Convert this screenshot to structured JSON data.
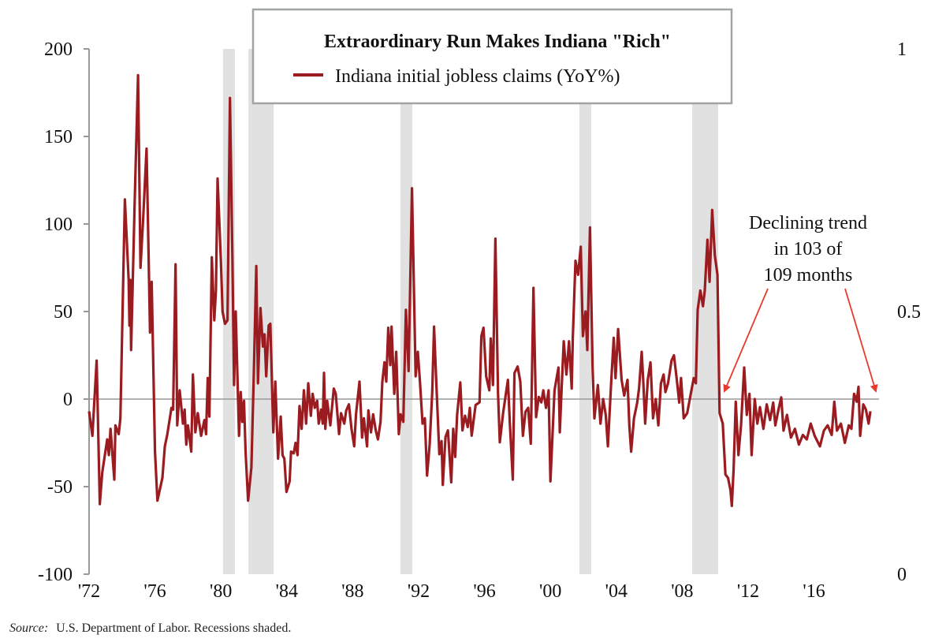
{
  "chart_data": {
    "type": "line",
    "title": "Extraordinary Run Makes Indiana \"Rich\"",
    "legend_position": "top-center",
    "series": [
      {
        "name": "Indiana initial jobless claims (YoY%)",
        "color": "#9b1c20",
        "x": [
          1972.0,
          1972.2,
          1972.46,
          1972.65,
          1972.8,
          1973.1,
          1973.2,
          1973.3,
          1973.53,
          1973.6,
          1973.8,
          1973.9,
          1974.17,
          1974.4,
          1974.45,
          1974.5,
          1974.55,
          1974.76,
          1974.97,
          1975.12,
          1975.28,
          1975.49,
          1975.6,
          1975.7,
          1975.8,
          1976.0,
          1976.15,
          1976.45,
          1976.6,
          1976.75,
          1977.0,
          1977.1,
          1977.25,
          1977.35,
          1977.5,
          1977.7,
          1977.8,
          1977.9,
          1978.0,
          1978.2,
          1978.3,
          1978.45,
          1978.6,
          1978.8,
          1979.0,
          1979.1,
          1979.2,
          1979.3,
          1979.45,
          1979.6,
          1979.7,
          1979.8,
          1980.0,
          1980.1,
          1980.25,
          1980.4,
          1980.55,
          1980.7,
          1980.8,
          1980.9,
          1981.1,
          1981.2,
          1981.3,
          1981.4,
          1981.5,
          1981.65,
          1981.85,
          1982.0,
          1982.15,
          1982.25,
          1982.4,
          1982.55,
          1982.65,
          1982.75,
          1982.9,
          1983.0,
          1983.18,
          1983.3,
          1983.47,
          1983.63,
          1983.74,
          1983.85,
          1983.98,
          1984.17,
          1984.26,
          1984.42,
          1984.53,
          1984.65,
          1984.77,
          1984.9,
          1985.04,
          1985.17,
          1985.3,
          1985.46,
          1985.57,
          1985.7,
          1985.84,
          1985.94,
          1986.08,
          1986.18,
          1986.26,
          1986.34,
          1986.45,
          1986.64,
          1986.85,
          1986.97,
          1987.17,
          1987.29,
          1987.49,
          1987.61,
          1987.77,
          1987.93,
          1988.09,
          1988.2,
          1988.41,
          1988.57,
          1988.68,
          1988.87,
          1988.95,
          1989.11,
          1989.24,
          1989.4,
          1989.53,
          1989.69,
          1989.8,
          1989.93,
          1990.04,
          1990.16,
          1990.28,
          1990.36,
          1990.52,
          1990.64,
          1990.8,
          1990.91,
          1991.07,
          1991.23,
          1991.39,
          1991.6,
          1991.82,
          1991.95,
          1992.08,
          1992.24,
          1992.38,
          1992.51,
          1992.67,
          1992.83,
          1992.94,
          1993.07,
          1993.26,
          1993.39,
          1993.47,
          1993.63,
          1993.78,
          1993.98,
          1994.1,
          1994.22,
          1994.34,
          1994.53,
          1994.66,
          1994.82,
          1994.98,
          1995.11,
          1995.22,
          1995.46,
          1995.7,
          1995.81,
          1995.94,
          1996.1,
          1996.29,
          1996.38,
          1996.51,
          1996.66,
          1996.82,
          1996.93,
          1997.13,
          1997.29,
          1997.42,
          1997.53,
          1997.72,
          1997.82,
          1998.01,
          1998.17,
          1998.33,
          1998.49,
          1998.65,
          1998.81,
          1998.97,
          1999.13,
          1999.29,
          1999.45,
          1999.57,
          1999.73,
          1999.89,
          2000.0,
          2000.25,
          2000.49,
          2000.57,
          2000.69,
          2000.81,
          2000.97,
          2001.13,
          2001.29,
          2001.36,
          2001.52,
          2001.68,
          2001.84,
          2001.97,
          2002.13,
          2002.24,
          2002.4,
          2002.56,
          2002.67,
          2002.88,
          2003.04,
          2003.2,
          2003.36,
          2003.49,
          2003.68,
          2003.84,
          2003.95,
          2004.11,
          2004.32,
          2004.48,
          2004.68,
          2004.79,
          2004.9,
          2005.07,
          2005.27,
          2005.38,
          2005.54,
          2005.64,
          2005.75,
          2005.91,
          2006.07,
          2006.23,
          2006.39,
          2006.55,
          2006.71,
          2006.87,
          2006.98,
          2007.14,
          2007.35,
          2007.5,
          2007.66,
          2007.82,
          2007.93,
          2008.09,
          2008.3,
          2008.54,
          2008.7,
          2008.83,
          2008.94,
          2009.1,
          2009.26,
          2009.37,
          2009.53,
          2009.66,
          2009.82,
          2009.98,
          2010.14,
          2010.27,
          2010.46,
          2010.62,
          2010.78,
          2010.93,
          2011.01,
          2011.12,
          2011.25,
          2011.41,
          2011.57,
          2011.76,
          2011.92,
          2012.08,
          2012.21,
          2012.4,
          2012.56,
          2012.72,
          2012.93,
          2013.13,
          2013.33,
          2013.52,
          2013.65,
          2013.84,
          2014.01,
          2014.15,
          2014.36,
          2014.6,
          2014.84,
          2015.08,
          2015.32,
          2015.56,
          2015.8,
          2016.04,
          2016.36,
          2016.6,
          2016.83,
          2017.07,
          2017.23,
          2017.39,
          2017.63,
          2017.87,
          2018.11,
          2018.27,
          2018.43,
          2018.59,
          2018.7,
          2018.8,
          2018.99,
          2019.15,
          2019.31,
          2019.42
        ],
        "y": [
          -7,
          -21,
          22,
          -60,
          -42,
          -23,
          -32,
          -17,
          -46,
          -15,
          -20,
          -11,
          114,
          68,
          42,
          68,
          28,
          110,
          185,
          75,
          103,
          143,
          89,
          38,
          67,
          -30,
          -58,
          -45,
          -27,
          -20,
          -5,
          -6,
          77,
          -15,
          5,
          -14,
          -6,
          -26,
          -15,
          -30,
          14,
          -19,
          -8,
          -21,
          -12,
          -20,
          12,
          -10,
          81,
          45,
          62,
          126,
          79,
          50,
          43,
          45,
          172,
          81,
          8,
          50,
          -21,
          4,
          -13,
          -1,
          -30,
          -58,
          -39,
          15,
          76,
          9,
          52,
          30,
          37,
          13,
          42,
          43,
          -19,
          10,
          -34,
          -10,
          -32,
          -34,
          -53,
          -47,
          -30,
          -31,
          -25,
          -32,
          -4,
          -17,
          5,
          -14,
          9,
          -9.5,
          3,
          -5,
          -1,
          -14,
          -6,
          -14,
          15,
          -17,
          -1,
          -15,
          6,
          3,
          -20,
          -8,
          -14,
          -6.5,
          -3,
          -17,
          -27,
          -8.7,
          10,
          -22,
          -11,
          -27,
          -6.5,
          -19,
          -8.7,
          -18,
          -23,
          -13,
          10,
          21,
          10,
          40.7,
          19.4,
          41.4,
          3,
          27,
          -20,
          -8.7,
          -13,
          51,
          16,
          120.4,
          13,
          27,
          10,
          -14,
          -11,
          -43.7,
          -26,
          4,
          41.4,
          10,
          -31.5,
          -24,
          -49,
          -21.7,
          -17.9,
          -47.5,
          -17,
          -33,
          -8.7,
          9.5,
          -17.9,
          -9.5,
          -16,
          -5,
          -20.9,
          -3.4,
          -1.9,
          36,
          40.7,
          13,
          5,
          34.6,
          8,
          91.6,
          4,
          -24.7,
          -8,
          2.7,
          11,
          -12.5,
          -46,
          14.8,
          18.6,
          10,
          -21,
          -7.2,
          -5,
          -25.5,
          63.5,
          -10.3,
          1.2,
          -1.9,
          5,
          -5,
          5,
          -47,
          5,
          18,
          -19,
          8,
          33,
          14,
          33,
          6,
          35,
          79,
          71,
          87,
          36,
          50,
          28,
          98,
          18,
          -11,
          8,
          -14,
          0,
          -9,
          -27,
          8,
          35,
          12,
          40,
          11,
          2,
          11,
          -15,
          -30,
          -11,
          -2,
          6,
          27,
          9,
          -14,
          11,
          21,
          -11,
          0,
          -15,
          9,
          14,
          4,
          9,
          22,
          25,
          12,
          -2,
          12,
          -11,
          -8,
          4,
          12,
          9,
          51,
          62,
          53,
          62,
          91,
          67,
          108,
          82,
          71,
          -8,
          -14,
          -43,
          -45,
          -52,
          -61,
          -40,
          -1.5,
          -32,
          -15,
          18,
          -9,
          3,
          -32,
          0,
          -14,
          -4.6,
          -17,
          -3,
          -12,
          -2,
          -15,
          -6,
          1,
          -18,
          -9,
          -22,
          -17,
          -26,
          -20.5,
          -23,
          -14,
          -21,
          -27,
          -18,
          -15,
          -20.5,
          -1.5,
          -18,
          -14,
          -25,
          -15,
          -17,
          3,
          -1.5,
          7,
          -21,
          -3,
          -6,
          -14,
          -7
        ]
      }
    ],
    "recessions": [
      [
        1980.13,
        1980.85
      ],
      [
        1981.67,
        1983.2
      ],
      [
        1990.9,
        1991.62
      ],
      [
        2001.76,
        2002.48
      ],
      [
        2008.6,
        2010.18
      ]
    ],
    "recession_color": "#e0e1e0",
    "xlim": [
      1972,
      2020
    ],
    "ylim": [
      -100,
      200
    ],
    "y_ticks": [
      "200",
      "150",
      "100",
      "50",
      "0",
      "-50",
      "-100"
    ],
    "y_tick_values": [
      200,
      150,
      100,
      50,
      0,
      -50,
      -100
    ],
    "y2_ticks": [
      "1",
      "0.5",
      "0"
    ],
    "y2_tick_values": [
      1,
      0.5,
      0
    ],
    "y2lim": [
      0,
      1
    ],
    "x_ticks": [
      "'72",
      "'76",
      "'80",
      "'84",
      "'88",
      "'92",
      "'96",
      "'00",
      "'04",
      "'08",
      "'12",
      "'16"
    ],
    "x_tick_values": [
      1972,
      1976,
      1980,
      1984,
      1988,
      1992,
      1996,
      2000,
      2004,
      2008,
      2012,
      2016
    ],
    "grid": false,
    "annotation": {
      "lines": [
        "Declining trend",
        "in 103 of",
        "109 months"
      ],
      "arrow_color": "#e63a2e"
    },
    "source_label": "Source:",
    "source_text": "U.S. Department of Labor. Recessions shaded."
  }
}
